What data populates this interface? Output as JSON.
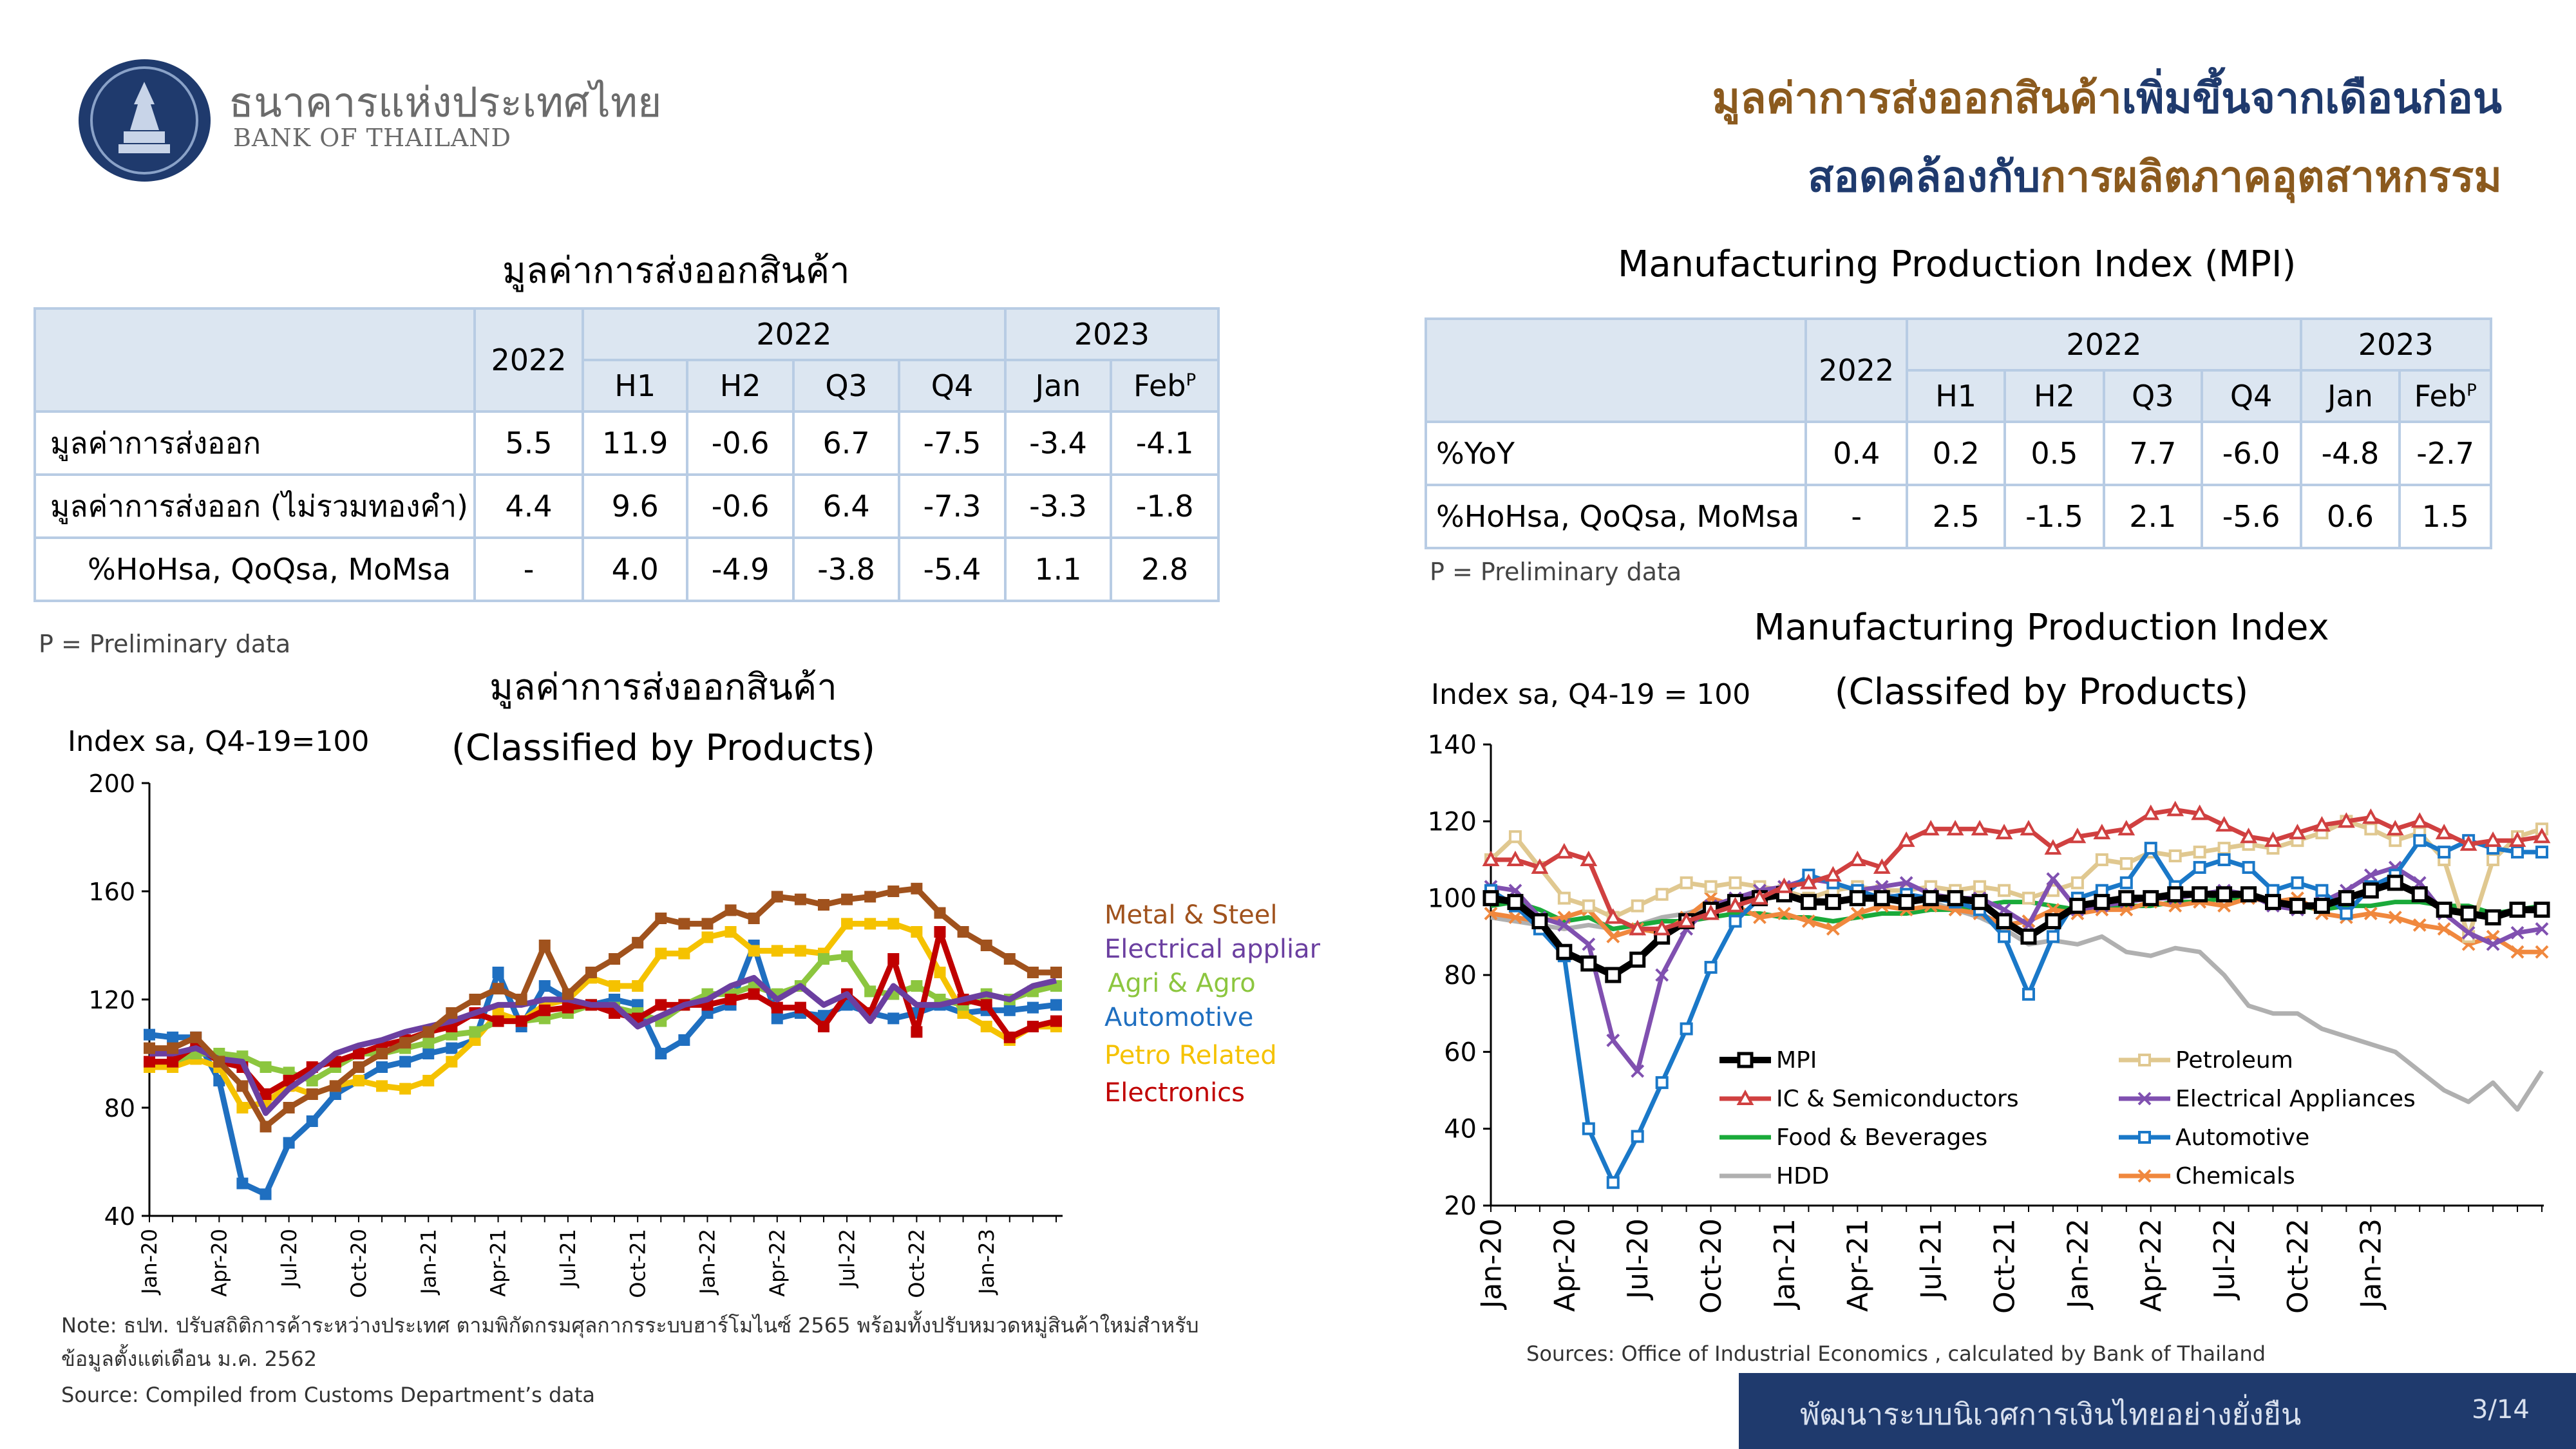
{
  "header": {
    "bank_name_th": "ธนาคารแห่งประเทศไทย",
    "bank_name_en": "BANK OF THAILAND",
    "headline_line1_part1": "มูลค่าการส่งออกสินค้า",
    "headline_line1_part2": "เพิ่มขึ้นจากเดือนก่อน",
    "headline_line2_part1": "สอดคล้องกับ",
    "headline_line2_part2": "การผลิตภาคอุตสาหกรรม"
  },
  "export_table": {
    "title": "มูลค่าการส่งออกสินค้า",
    "col_2022": "2022",
    "group_2022": "2022",
    "group_2023": "2023",
    "subcols": [
      "H1",
      "H2",
      "Q3",
      "Q4",
      "Jan",
      "Feb"
    ],
    "feb_sup": "P",
    "rows": [
      {
        "label": "มูลค่าการส่งออก",
        "values": [
          "5.5",
          "11.9",
          "-0.6",
          "6.7",
          "-7.5",
          "-3.4",
          "-4.1"
        ]
      },
      {
        "label": "มูลค่าการส่งออก (ไม่รวมทองคำ)",
        "values": [
          "4.4",
          "9.6",
          "-0.6",
          "6.4",
          "-7.3",
          "-3.3",
          "-1.8"
        ]
      },
      {
        "label": "%HoHsa, QoQsa, MoMsa",
        "values": [
          "-",
          "4.0",
          "-4.9",
          "-3.8",
          "-5.4",
          "1.1",
          "2.8"
        ]
      }
    ],
    "note": "P = Preliminary data"
  },
  "mpi_table": {
    "title": "Manufacturing Production Index (MPI)",
    "col_2022": "2022",
    "group_2022": "2022",
    "group_2023": "2023",
    "subcols": [
      "H1",
      "H2",
      "Q3",
      "Q4",
      "Jan",
      "Feb"
    ],
    "feb_sup": "P",
    "rows": [
      {
        "label": "%YoY",
        "values": [
          "0.4",
          "0.2",
          "0.5",
          "7.7",
          "-6.0",
          "-4.8",
          "-2.7"
        ]
      },
      {
        "label": "%HoHsa, QoQsa, MoMsa",
        "values": [
          "-",
          "2.5",
          "-1.5",
          "2.1",
          "-5.6",
          "0.6",
          "1.5"
        ]
      }
    ],
    "note": "P = Preliminary data"
  },
  "colors": {
    "metal": "#a0521d",
    "elec_app": "#6b3fa0",
    "agri": "#8cc63f",
    "auto": "#1f6fc0",
    "petro": "#f5c200",
    "electronics": "#c00000",
    "mpi": "#000000",
    "petroleum": "#e0c890",
    "ic": "#d04040",
    "food": "#1aaa3a",
    "hdd": "#b0b0b0",
    "chemicals": "#f0883e",
    "mpi_elec": "#8050b0",
    "mpi_auto": "#1a78c8"
  },
  "chart_data": [
    {
      "type": "line",
      "title": "มูลค่าการส่งออกสินค้า",
      "subtitle": "(Classified by Products)",
      "ylabel": "Index sa, Q4-19=100",
      "ylim": [
        40,
        200
      ],
      "yticks": [
        "200",
        "160",
        "120",
        "80",
        "40"
      ],
      "x_tick_labels": [
        "Jan-20",
        "Apr-20",
        "Jul-20",
        "Oct-20",
        "Jan-21",
        "Apr-21",
        "Jul-21",
        "Oct-21",
        "Jan-22",
        "Apr-22",
        "Jul-22",
        "Oct-22",
        "Jan-23"
      ],
      "x_tick_index": [
        0,
        3,
        6,
        9,
        12,
        15,
        18,
        21,
        24,
        27,
        30,
        33,
        36
      ],
      "series": [
        {
          "name": "Automotive",
          "color_key": "auto",
          "values": [
            107,
            106,
            106,
            90,
            52,
            48,
            67,
            75,
            85,
            90,
            95,
            97,
            100,
            102,
            105,
            130,
            110,
            125,
            120,
            118,
            120,
            118,
            100,
            105,
            115,
            118,
            140,
            113,
            115,
            114,
            118,
            115,
            113,
            115,
            118,
            115,
            116,
            116,
            117,
            118
          ]
        },
        {
          "name": "Petro Related",
          "color_key": "petro",
          "values": [
            95,
            95,
            98,
            95,
            80,
            82,
            88,
            85,
            88,
            90,
            88,
            87,
            90,
            97,
            105,
            115,
            112,
            118,
            120,
            128,
            125,
            125,
            137,
            137,
            143,
            145,
            138,
            138,
            138,
            137,
            148,
            148,
            148,
            145,
            130,
            115,
            110,
            105,
            110,
            110
          ]
        },
        {
          "name": "Agri & Agro",
          "color_key": "agri",
          "values": [
            97,
            97,
            100,
            100,
            99,
            95,
            93,
            90,
            95,
            100,
            100,
            102,
            104,
            107,
            108,
            112,
            112,
            113,
            115,
            118,
            117,
            115,
            112,
            118,
            122,
            122,
            125,
            122,
            125,
            135,
            136,
            123,
            122,
            125,
            120,
            118,
            122,
            120,
            123,
            125
          ]
        },
        {
          "name": "Electronics",
          "color_key": "electronics",
          "values": [
            97,
            97,
            103,
            97,
            95,
            85,
            90,
            95,
            97,
            100,
            103,
            105,
            108,
            110,
            115,
            112,
            112,
            116,
            117,
            118,
            115,
            113,
            118,
            118,
            118,
            120,
            122,
            117,
            117,
            110,
            122,
            115,
            135,
            108,
            145,
            120,
            118,
            106,
            110,
            112
          ]
        },
        {
          "name": "Electrical appliances",
          "color_key": "elec_app",
          "values": [
            100,
            100,
            102,
            98,
            97,
            78,
            87,
            93,
            100,
            103,
            105,
            108,
            110,
            112,
            115,
            118,
            118,
            120,
            120,
            118,
            118,
            110,
            114,
            118,
            120,
            125,
            128,
            120,
            125,
            118,
            122,
            112,
            125,
            118,
            118,
            120,
            122,
            120,
            125,
            127
          ]
        },
        {
          "name": "Metal & Steel",
          "color_key": "metal",
          "values": [
            102,
            102,
            106,
            97,
            88,
            73,
            80,
            85,
            88,
            95,
            100,
            104,
            108,
            115,
            120,
            124,
            120,
            140,
            122,
            130,
            135,
            141,
            150,
            148,
            148,
            153,
            150,
            158,
            157,
            155,
            157,
            158,
            160,
            161,
            152,
            145,
            140,
            135,
            130,
            130
          ]
        }
      ],
      "legend": [
        "Metal & Steel",
        "Electrical appliances",
        "Agri & Agro",
        "Automotive",
        "Petro Related",
        "Electronics"
      ]
    },
    {
      "type": "line",
      "title": "Manufacturing Production Index",
      "subtitle": "(Classifed by Products)",
      "ylabel": "Index sa, Q4-19 = 100",
      "ylim": [
        20,
        140
      ],
      "yticks": [
        "140",
        "120",
        "100",
        "80",
        "60",
        "40",
        "20"
      ],
      "x_tick_labels": [
        "Jan-20",
        "Apr-20",
        "Jul-20",
        "Oct-20",
        "Jan-21",
        "Apr-21",
        "Jul-21",
        "Oct-21",
        "Jan-22",
        "Apr-22",
        "Jul-22",
        "Oct-22",
        "Jan-23"
      ],
      "x_tick_index": [
        0,
        3,
        6,
        9,
        12,
        15,
        18,
        21,
        24,
        27,
        30,
        33,
        36
      ],
      "series": [
        {
          "name": "HDD",
          "color_key": "hdd",
          "values": [
            95,
            94,
            93,
            92,
            93,
            92,
            93,
            95,
            96,
            98,
            99,
            100,
            101,
            100,
            99,
            100,
            101,
            100,
            99,
            97,
            95,
            92,
            88,
            89,
            88,
            90,
            86,
            85,
            87,
            86,
            80,
            72,
            70,
            70,
            66,
            64,
            62,
            60,
            55,
            50,
            47,
            52,
            45,
            55
          ]
        },
        {
          "name": "Food & Beverages",
          "color_key": "food",
          "values": [
            98,
            99,
            97,
            94,
            95,
            92,
            93,
            94,
            94,
            95,
            96,
            96,
            95,
            95,
            94,
            95,
            96,
            96,
            97,
            97,
            98,
            99,
            99,
            98,
            97,
            97,
            98,
            98,
            99,
            99,
            100,
            100,
            99,
            98,
            97,
            98,
            98,
            99,
            99,
            98,
            98,
            96,
            97,
            98
          ]
        },
        {
          "name": "Chemicals",
          "color_key": "chemicals",
          "values": [
            96,
            95,
            94,
            95,
            97,
            90,
            92,
            91,
            95,
            100,
            98,
            95,
            96,
            94,
            92,
            96,
            98,
            97,
            98,
            97,
            96,
            93,
            94,
            97,
            96,
            97,
            97,
            99,
            98,
            99,
            98,
            100,
            99,
            100,
            96,
            95,
            96,
            95,
            93,
            92,
            88,
            90,
            86,
            86
          ]
        },
        {
          "name": "Petroleum",
          "color_key": "petroleum",
          "values": [
            110,
            116,
            108,
            100,
            98,
            95,
            98,
            101,
            104,
            103,
            104,
            103,
            102,
            100,
            102,
            103,
            102,
            102,
            103,
            102,
            103,
            102,
            100,
            102,
            104,
            110,
            109,
            112,
            111,
            112,
            113,
            114,
            113,
            115,
            117,
            120,
            118,
            115,
            117,
            110,
            90,
            110,
            116,
            118
          ]
        },
        {
          "name": "Electrical Appliances",
          "color_key": "mpi_elec",
          "values": [
            103,
            102,
            95,
            93,
            88,
            63,
            55,
            80,
            92,
            98,
            100,
            102,
            103,
            105,
            104,
            102,
            103,
            104,
            101,
            100,
            100,
            97,
            93,
            105,
            97,
            98,
            99,
            100,
            100,
            101,
            102,
            101,
            98,
            97,
            99,
            102,
            106,
            108,
            104,
            96,
            91,
            88,
            91,
            92
          ]
        },
        {
          "name": "Automotive",
          "color_key": "mpi_auto",
          "values": [
            102,
            98,
            92,
            85,
            40,
            26,
            38,
            52,
            66,
            82,
            94,
            100,
            101,
            106,
            104,
            102,
            100,
            101,
            100,
            99,
            97,
            90,
            75,
            90,
            100,
            102,
            104,
            113,
            103,
            108,
            110,
            108,
            102,
            104,
            102,
            96,
            103,
            106,
            115,
            112,
            115,
            113,
            112,
            112
          ]
        },
        {
          "name": "MPI",
          "color_key": "mpi",
          "values": [
            100,
            99,
            94,
            86,
            83,
            80,
            84,
            90,
            94,
            97,
            99,
            100,
            101,
            99,
            99,
            100,
            100,
            99,
            100,
            100,
            99,
            94,
            90,
            94,
            98,
            99,
            100,
            100,
            101,
            101,
            101,
            101,
            99,
            98,
            98,
            100,
            102,
            104,
            101,
            97,
            96,
            95,
            97,
            97
          ]
        },
        {
          "name": "IC & Semiconductors",
          "color_key": "ic",
          "values": [
            110,
            110,
            108,
            112,
            110,
            95,
            92,
            92,
            94,
            96,
            98,
            100,
            103,
            104,
            106,
            110,
            108,
            115,
            118,
            118,
            118,
            117,
            118,
            113,
            116,
            117,
            118,
            122,
            123,
            122,
            119,
            116,
            115,
            117,
            119,
            120,
            121,
            118,
            120,
            117,
            114,
            115,
            115,
            116
          ]
        }
      ],
      "legend": [
        {
          "name": "MPI",
          "color_key": "mpi"
        },
        {
          "name": "Petroleum",
          "color_key": "petroleum"
        },
        {
          "name": "IC & Semiconductors",
          "color_key": "ic"
        },
        {
          "name": "Electrical Appliances",
          "color_key": "mpi_elec"
        },
        {
          "name": "Food & Beverages",
          "color_key": "food"
        },
        {
          "name": "Automotive",
          "color_key": "mpi_auto"
        },
        {
          "name": "HDD",
          "color_key": "hdd"
        },
        {
          "name": "Chemicals",
          "color_key": "chemicals"
        }
      ]
    }
  ],
  "notes": {
    "export_note_line1": "Note: ธปท. ปรับสถิติการค้าระหว่างประเทศ ตามพิกัดกรมศุลกากรระบบฮาร์โมไนซ์ 2565 พร้อมทั้งปรับหมวดหมู่สินค้าใหม่สำหรับ",
    "export_note_line2": "ข้อมูลตั้งแต่เดือน ม.ค. 2562",
    "export_source": "Source: Compiled from Customs Department’s data",
    "mpi_source": "Sources: Office of Industrial Economics , calculated by Bank of Thailand"
  },
  "footer": {
    "text": "พัฒนาระบบนิเวศการเงินไทยอย่างยั่งยืน",
    "page": "3/14"
  }
}
